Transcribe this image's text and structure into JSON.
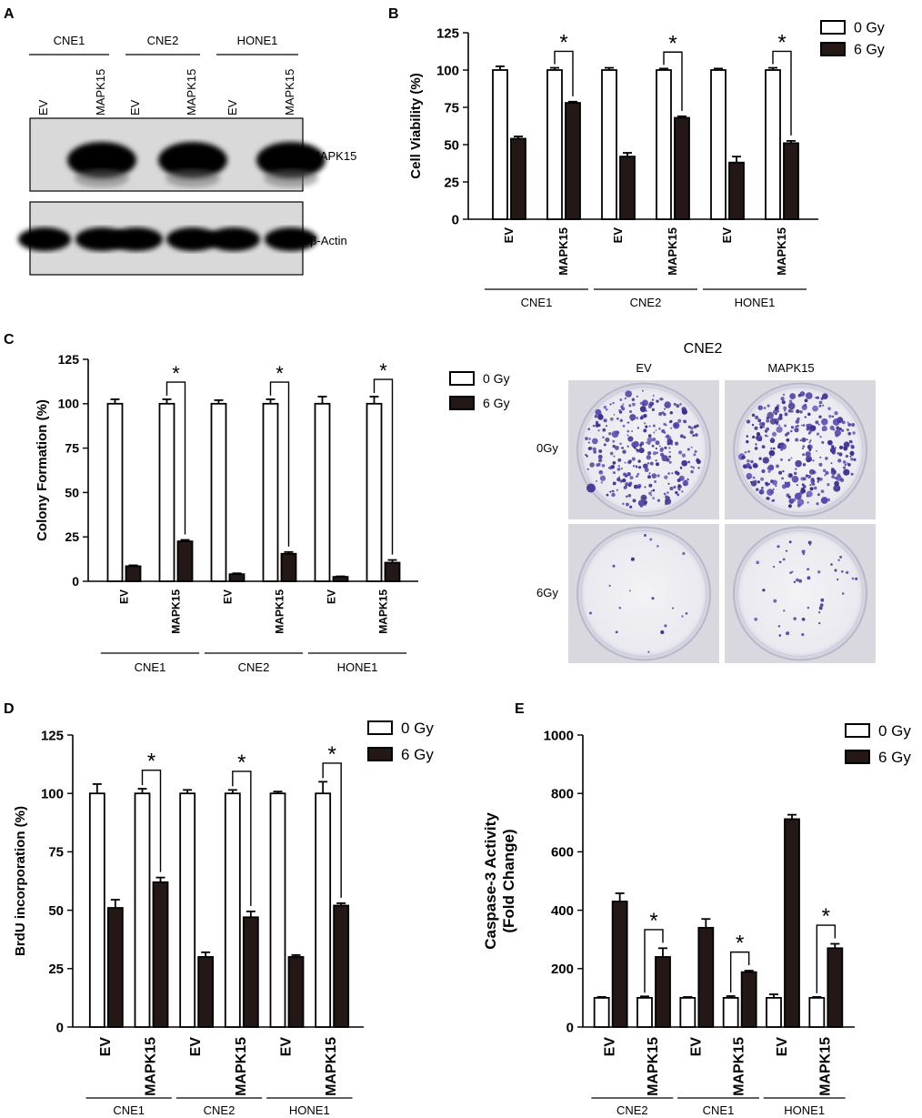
{
  "panel_letters": {
    "a": "A",
    "b": "B",
    "c": "C",
    "d": "D",
    "e": "E"
  },
  "blot": {
    "cell_lines": [
      "CNE1",
      "CNE2",
      "HONE1"
    ],
    "lanes": [
      "EV",
      "MAPK15",
      "EV",
      "MAPK15",
      "EV",
      "MAPK15"
    ],
    "bands": [
      {
        "label": "MAPK15",
        "intensity": [
          0,
          1,
          0,
          1,
          0,
          1
        ]
      },
      {
        "label": "β-Actin",
        "intensity": [
          1,
          1,
          1,
          1,
          1,
          1
        ]
      }
    ]
  },
  "colony": {
    "title": "CNE2",
    "col_labels": [
      "EV",
      "MAPK15"
    ],
    "row_labels": [
      "0Gy",
      "6Gy"
    ]
  },
  "chart_data": [
    {
      "id": "B",
      "type": "bar",
      "ylabel": "Cell Viability (%)",
      "xlabel": "",
      "ylim": [
        0,
        125
      ],
      "yticks": [
        0,
        25,
        50,
        75,
        100,
        125
      ],
      "categories": [
        "EV",
        "MAPK15",
        "EV",
        "MAPK15",
        "EV",
        "MAPK15"
      ],
      "groups": [
        "CNE1",
        "CNE2",
        "HONE1"
      ],
      "series": [
        {
          "name": "0 Gy",
          "color": "#ffffff",
          "values": [
            100,
            100,
            100,
            100,
            100,
            100
          ],
          "errors": [
            2.5,
            1.5,
            1.5,
            1,
            1,
            1.5
          ]
        },
        {
          "name": "6 Gy",
          "color": "#231815",
          "values": [
            54,
            78,
            42,
            68,
            38,
            51
          ],
          "errors": [
            1.5,
            0.8,
            2.5,
            1,
            4,
            1.5
          ]
        }
      ],
      "significance": [
        1,
        3,
        5
      ],
      "sig_label": "*",
      "legend_position": "top-right"
    },
    {
      "id": "C",
      "type": "bar",
      "ylabel": "Colony Formation (%)",
      "xlabel": "",
      "ylim": [
        0,
        125
      ],
      "yticks": [
        0,
        25,
        50,
        75,
        100,
        125
      ],
      "categories": [
        "EV",
        "MAPK15",
        "EV",
        "MAPK15",
        "EV",
        "MAPK15"
      ],
      "groups": [
        "CNE1",
        "CNE2",
        "HONE1"
      ],
      "series": [
        {
          "name": "0 Gy",
          "color": "#ffffff",
          "values": [
            100,
            100,
            100,
            100,
            100,
            100
          ],
          "errors": [
            2.5,
            2.5,
            2,
            2.5,
            4,
            4
          ]
        },
        {
          "name": "6 Gy",
          "color": "#231815",
          "values": [
            8.5,
            22.5,
            4,
            15.5,
            2.5,
            10.5
          ],
          "errors": [
            0.5,
            0.8,
            0.5,
            1,
            0.3,
            1.5
          ]
        }
      ],
      "significance": [
        1,
        3,
        5
      ],
      "sig_label": "*",
      "legend_position": "top-right"
    },
    {
      "id": "D",
      "type": "bar",
      "ylabel": "BrdU incorporation (%)",
      "xlabel": "",
      "ylim": [
        0,
        125
      ],
      "yticks": [
        0,
        25,
        50,
        75,
        100,
        125
      ],
      "categories": [
        "EV",
        "MAPK15",
        "EV",
        "MAPK15",
        "EV",
        "MAPK15"
      ],
      "groups": [
        "CNE1",
        "CNE2",
        "HONE1"
      ],
      "series": [
        {
          "name": "0 Gy",
          "color": "#ffffff",
          "values": [
            100,
            100,
            100,
            100,
            100,
            100
          ],
          "errors": [
            4,
            2,
            1.5,
            1.5,
            0.8,
            5
          ]
        },
        {
          "name": "6 Gy",
          "color": "#231815",
          "values": [
            51,
            62,
            30,
            47,
            30,
            52
          ],
          "errors": [
            3.5,
            2,
            2,
            2.5,
            0.8,
            1
          ]
        }
      ],
      "significance": [
        1,
        3,
        5
      ],
      "sig_label": "*",
      "legend_position": "top-right"
    },
    {
      "id": "E",
      "type": "bar",
      "ylabel": "Caspase-3 Activity\n(Fold Change)",
      "xlabel": "",
      "ylim": [
        0,
        1000
      ],
      "yticks": [
        0,
        200,
        400,
        600,
        800,
        1000
      ],
      "categories": [
        "EV",
        "MAPK15",
        "EV",
        "MAPK15",
        "EV",
        "MAPK15"
      ],
      "groups": [
        "CNE2",
        "CNE1",
        "HONE1"
      ],
      "series": [
        {
          "name": "0 Gy",
          "color": "#ffffff",
          "values": [
            100,
            100,
            100,
            100,
            100,
            100
          ],
          "errors": [
            3,
            5,
            3,
            6,
            12,
            3
          ]
        },
        {
          "name": "6 Gy",
          "color": "#231815",
          "values": [
            430,
            240,
            340,
            188,
            712,
            270
          ],
          "errors": [
            28,
            30,
            30,
            5,
            15,
            15
          ]
        }
      ],
      "significance": [
        1,
        3,
        5
      ],
      "sig_label": "*",
      "legend_position": "top-right"
    }
  ]
}
